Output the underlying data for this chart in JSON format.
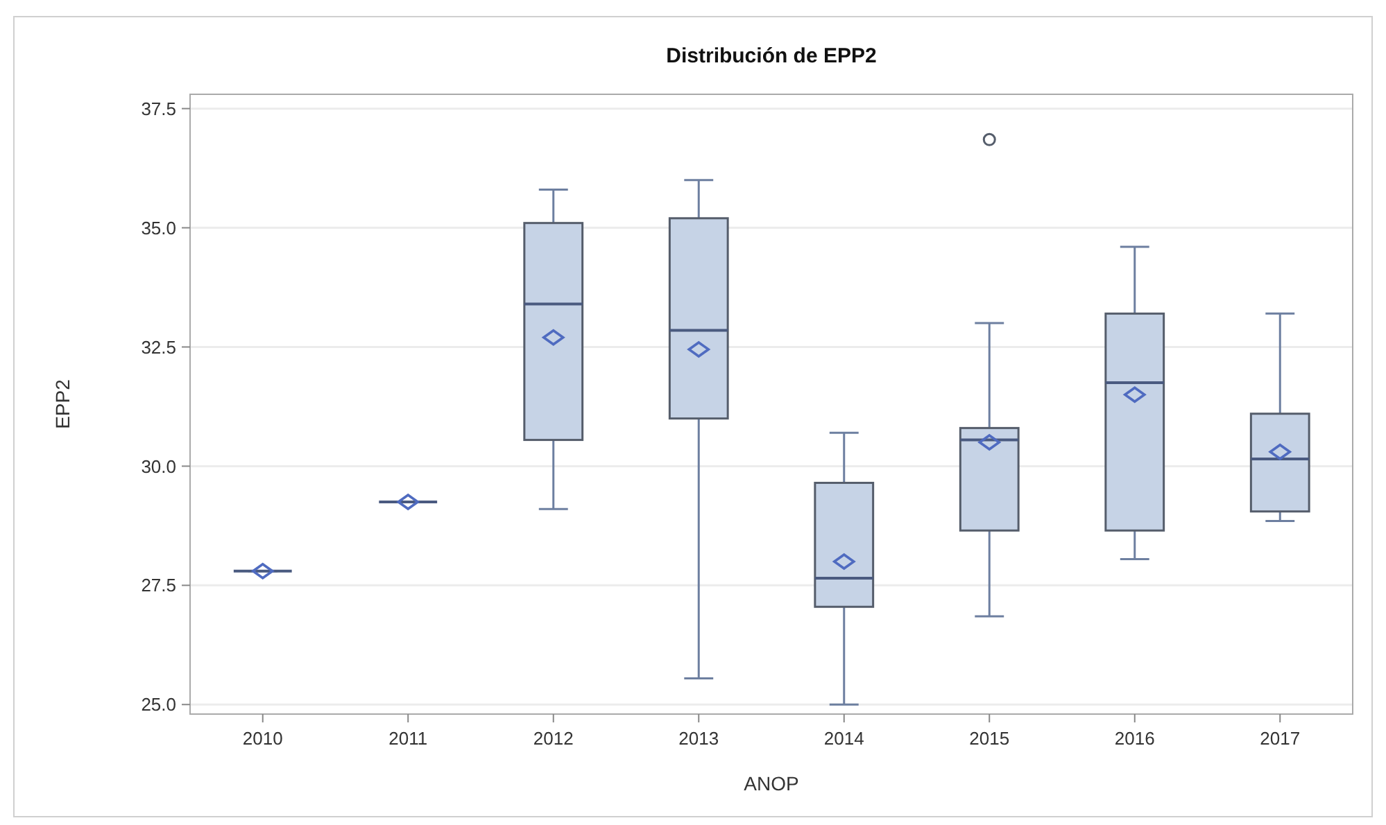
{
  "chart_data": {
    "type": "box",
    "title": "Distribución de EPP2",
    "xlabel": "ANOP",
    "ylabel": "EPP2",
    "categories": [
      "2010",
      "2011",
      "2012",
      "2013",
      "2014",
      "2015",
      "2016",
      "2017"
    ],
    "colors": [
      "#4a5a80",
      "#4a5a80",
      "#c6d3e6",
      "#c6d3e6",
      "#c6d3e6",
      "#c6d3e6",
      "#c6d3e6",
      "#c6d3e6"
    ],
    "boxes": [
      {
        "low": 27.8,
        "q1": 27.8,
        "median": 27.8,
        "q3": 27.8,
        "high": 27.8,
        "mean": 27.8
      },
      {
        "low": 29.25,
        "q1": 29.25,
        "median": 29.25,
        "q3": 29.25,
        "high": 29.25,
        "mean": 29.25
      },
      {
        "low": 29.1,
        "q1": 30.55,
        "median": 33.4,
        "q3": 35.1,
        "high": 35.8,
        "mean": 32.7
      },
      {
        "low": 25.55,
        "q1": 31.0,
        "median": 32.85,
        "q3": 35.2,
        "high": 36.0,
        "mean": 32.45
      },
      {
        "low": 25.0,
        "q1": 27.05,
        "median": 27.65,
        "q3": 29.65,
        "high": 30.7,
        "mean": 28.0
      },
      {
        "low": 26.85,
        "q1": 28.65,
        "median": 30.55,
        "q3": 30.8,
        "high": 33.0,
        "mean": 30.5,
        "outliers": [
          36.85
        ]
      },
      {
        "low": 28.05,
        "q1": 28.65,
        "median": 31.75,
        "q3": 33.2,
        "high": 34.6,
        "mean": 31.5
      },
      {
        "low": 28.85,
        "q1": 29.05,
        "median": 30.15,
        "q3": 31.1,
        "high": 33.2,
        "mean": 30.3
      }
    ],
    "ylim": [
      24.8,
      37.8
    ],
    "yticks": [
      {
        "value": 25,
        "label": "25.0"
      },
      {
        "value": 27.5,
        "label": "27.5"
      },
      {
        "value": 30,
        "label": "30.0"
      },
      {
        "value": 32.5,
        "label": "32.5"
      },
      {
        "value": 35,
        "label": "35.0"
      },
      {
        "value": 37.5,
        "label": "37.5"
      }
    ],
    "grid": "y"
  }
}
